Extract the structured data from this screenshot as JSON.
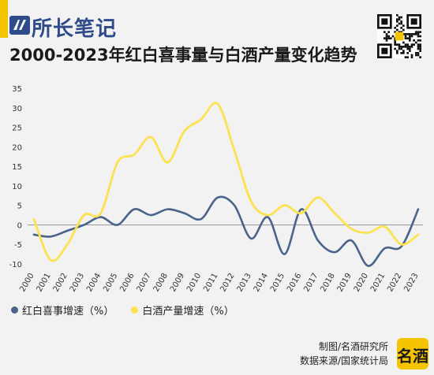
{
  "header": {
    "logo_text": "所长笔记",
    "title": "2000-2023年红白喜事量与白酒产量变化趋势"
  },
  "chart_data": {
    "type": "line",
    "x": [
      "2000",
      "2001",
      "2002",
      "2003",
      "2004",
      "2005",
      "2006",
      "2007",
      "2008",
      "2009",
      "2010",
      "2011",
      "2012",
      "2013",
      "2014",
      "2015",
      "2016",
      "2017",
      "2018",
      "2019",
      "2020",
      "2021",
      "2022",
      "2023"
    ],
    "ylim": [
      -10,
      35
    ],
    "yticks": [
      35,
      30,
      25,
      20,
      15,
      10,
      5,
      0,
      -5,
      -10
    ],
    "grid": false,
    "legend_position": "bottom-left",
    "series": [
      {
        "name": "红白喜事增速（%）",
        "color": "#4a6489",
        "values": [
          -2.5,
          -3,
          -1.5,
          0,
          2,
          0,
          4,
          2.5,
          4,
          3,
          1.5,
          7,
          5,
          -3.5,
          2,
          -7.5,
          4,
          -4,
          -7,
          -4,
          -10.5,
          -6,
          -5.5,
          4
        ]
      },
      {
        "name": "白酒产量增速（%）",
        "color": "#fde24f",
        "values": [
          1.5,
          -9,
          -5,
          2.5,
          3,
          16,
          18,
          22.5,
          16,
          24,
          27,
          31,
          19,
          6,
          2.5,
          5,
          3,
          7,
          3,
          -1,
          -2,
          -0.5,
          -5,
          -2.5
        ]
      }
    ]
  },
  "footer": {
    "maker": "制图/名酒研究所",
    "source": "数据来源/国家统计局",
    "stamp_text": "名酒"
  }
}
